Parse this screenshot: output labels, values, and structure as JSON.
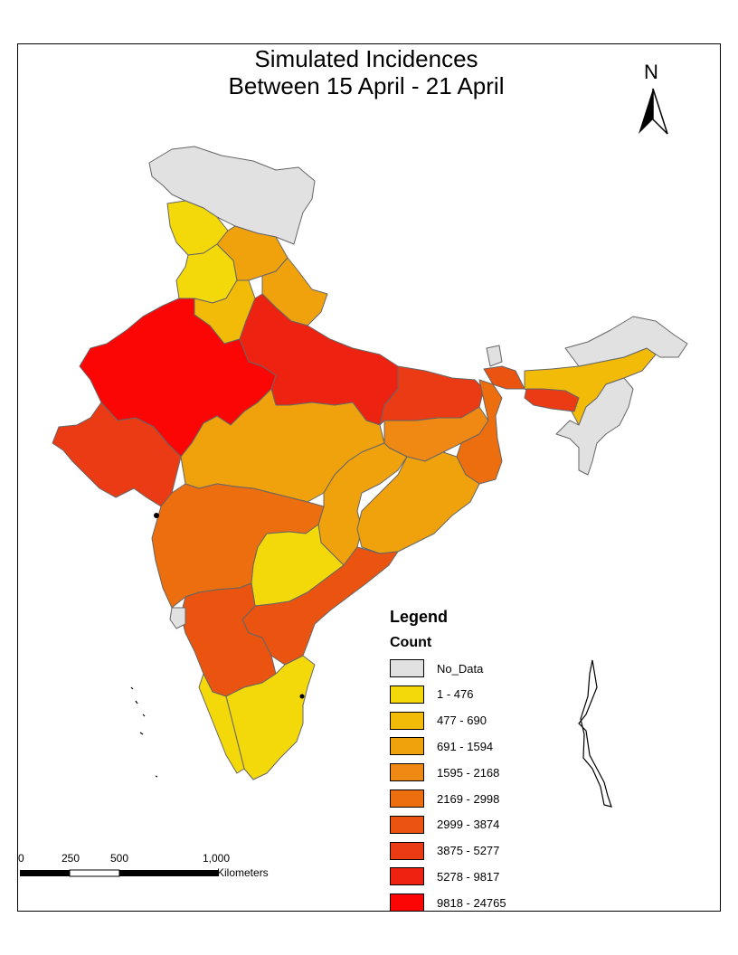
{
  "title_line1": "Simulated Incidences",
  "title_line2": "Between 15 April - 21 April",
  "north_label": "N",
  "legend": {
    "title": "Legend",
    "subtitle": "Count",
    "items": [
      {
        "label": "No_Data",
        "color": "#e1e1e1"
      },
      {
        "label": "1 - 476",
        "color": "#f4d90a"
      },
      {
        "label": "477 - 690",
        "color": "#f2bb08"
      },
      {
        "label": "691 - 1594",
        "color": "#f0a20c"
      },
      {
        "label": "1595 - 2168",
        "color": "#ef8913"
      },
      {
        "label": "2169 - 2998",
        "color": "#ec6e0e"
      },
      {
        "label": "2999 - 3874",
        "color": "#ea5410"
      },
      {
        "label": "3875 - 5277",
        "color": "#ea3b14"
      },
      {
        "label": "5278 - 9817",
        "color": "#ee2210"
      },
      {
        "label": "9818 - 24765",
        "color": "#fb0505"
      }
    ]
  },
  "scale": {
    "ticks": [
      "0",
      "250",
      "500",
      "1,000"
    ],
    "unit": "Kilometers"
  }
}
